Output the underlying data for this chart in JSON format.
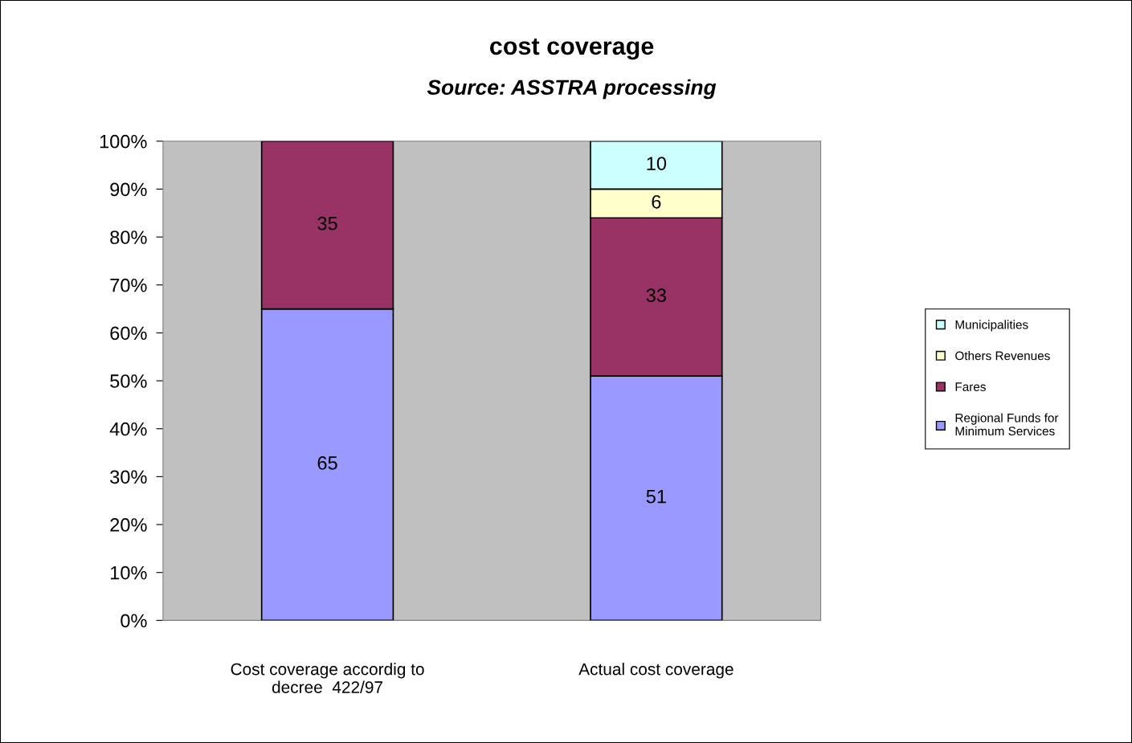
{
  "chart_data": {
    "type": "bar",
    "title": "cost coverage",
    "subtitle": "Source: ASSTRA processing",
    "categories": [
      "Cost coverage accordig to\ndecree  422/97",
      "Actual cost coverage"
    ],
    "stacked": true,
    "data_labels": true,
    "legend": "right",
    "grid": false,
    "ylim": [
      0,
      100
    ],
    "yticks": [
      {
        "value": 0,
        "label": "0%"
      },
      {
        "value": 10,
        "label": "10%"
      },
      {
        "value": 20,
        "label": "20%"
      },
      {
        "value": 30,
        "label": "30%"
      },
      {
        "value": 40,
        "label": "40%"
      },
      {
        "value": 50,
        "label": "50%"
      },
      {
        "value": 60,
        "label": "60%"
      },
      {
        "value": 70,
        "label": "70%"
      },
      {
        "value": 80,
        "label": "80%"
      },
      {
        "value": 90,
        "label": "90%"
      },
      {
        "value": 100,
        "label": "100%"
      }
    ],
    "series": [
      {
        "name": "Regional Funds for\nMinimum Services",
        "color": "#9999ff",
        "values": [
          65,
          51
        ]
      },
      {
        "name": "Fares",
        "color": "#993366",
        "values": [
          35,
          33
        ]
      },
      {
        "name": "Others Revenues",
        "color": "#ffffcc",
        "values": [
          null,
          6
        ]
      },
      {
        "name": "Municipalities",
        "color": "#ccffff",
        "values": [
          null,
          10
        ]
      }
    ]
  }
}
